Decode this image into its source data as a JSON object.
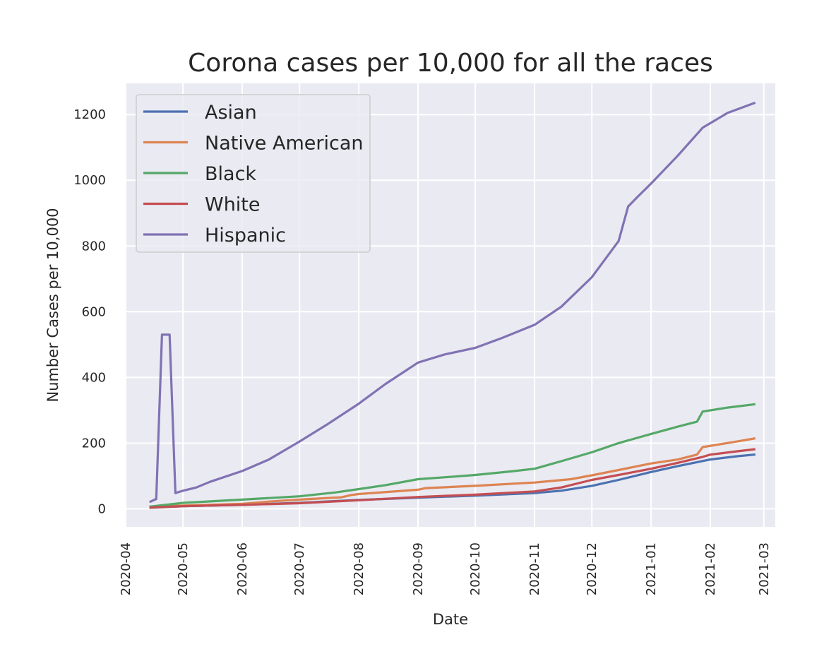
{
  "chart_data": {
    "type": "line",
    "title": "Corona cases per 10,000 for all the races",
    "xlabel": "Date",
    "ylabel": "Number Cases per 10,000",
    "x_axis_type": "date",
    "xlim": [
      "2020-04-01",
      "2021-03-07"
    ],
    "ylim": [
      -55,
      1295
    ],
    "x_ticks": [
      "2020-04",
      "2020-05",
      "2020-06",
      "2020-07",
      "2020-08",
      "2020-09",
      "2020-10",
      "2020-11",
      "2020-12",
      "2021-01",
      "2021-02",
      "2021-03"
    ],
    "y_ticks": [
      0,
      200,
      400,
      600,
      800,
      1000,
      1200
    ],
    "grid": true,
    "legend_position": "top-left",
    "series": [
      {
        "name": "Asian",
        "color": "#4c72b0",
        "points": [
          [
            "2020-04-14",
            3
          ],
          [
            "2020-05-01",
            8
          ],
          [
            "2020-06-01",
            12
          ],
          [
            "2020-07-01",
            18
          ],
          [
            "2020-08-01",
            27
          ],
          [
            "2020-09-01",
            34
          ],
          [
            "2020-10-01",
            40
          ],
          [
            "2020-11-01",
            48
          ],
          [
            "2020-11-15",
            55
          ],
          [
            "2020-12-01",
            70
          ],
          [
            "2020-12-15",
            88
          ],
          [
            "2021-01-01",
            112
          ],
          [
            "2021-01-15",
            130
          ],
          [
            "2021-02-01",
            150
          ],
          [
            "2021-02-15",
            160
          ],
          [
            "2021-02-24",
            165
          ]
        ]
      },
      {
        "name": "Native American",
        "color": "#dd8452",
        "points": [
          [
            "2020-04-14",
            5
          ],
          [
            "2020-05-01",
            10
          ],
          [
            "2020-06-01",
            15
          ],
          [
            "2020-06-15",
            22
          ],
          [
            "2020-07-01",
            28
          ],
          [
            "2020-07-23",
            35
          ],
          [
            "2020-07-28",
            42
          ],
          [
            "2020-08-01",
            45
          ],
          [
            "2020-09-01",
            58
          ],
          [
            "2020-09-05",
            63
          ],
          [
            "2020-10-01",
            70
          ],
          [
            "2020-11-01",
            80
          ],
          [
            "2020-11-20",
            90
          ],
          [
            "2020-12-01",
            102
          ],
          [
            "2020-12-15",
            118
          ],
          [
            "2021-01-01",
            138
          ],
          [
            "2021-01-15",
            150
          ],
          [
            "2021-01-25",
            165
          ],
          [
            "2021-01-28",
            188
          ],
          [
            "2021-02-15",
            205
          ],
          [
            "2021-02-24",
            214
          ]
        ]
      },
      {
        "name": "Black",
        "color": "#55a868",
        "points": [
          [
            "2020-04-14",
            7
          ],
          [
            "2020-05-01",
            18
          ],
          [
            "2020-06-01",
            28
          ],
          [
            "2020-07-01",
            38
          ],
          [
            "2020-07-20",
            50
          ],
          [
            "2020-08-01",
            60
          ],
          [
            "2020-08-15",
            72
          ],
          [
            "2020-09-01",
            90
          ],
          [
            "2020-09-20",
            98
          ],
          [
            "2020-10-01",
            103
          ],
          [
            "2020-10-20",
            114
          ],
          [
            "2020-11-01",
            122
          ],
          [
            "2020-11-15",
            145
          ],
          [
            "2020-12-01",
            172
          ],
          [
            "2020-12-15",
            200
          ],
          [
            "2021-01-01",
            228
          ],
          [
            "2021-01-15",
            250
          ],
          [
            "2021-01-25",
            265
          ],
          [
            "2021-01-28",
            296
          ],
          [
            "2021-02-10",
            308
          ],
          [
            "2021-02-24",
            318
          ]
        ]
      },
      {
        "name": "White",
        "color": "#c44e52",
        "points": [
          [
            "2020-04-14",
            4
          ],
          [
            "2020-05-01",
            8
          ],
          [
            "2020-06-01",
            12
          ],
          [
            "2020-07-01",
            17
          ],
          [
            "2020-08-01",
            26
          ],
          [
            "2020-09-01",
            36
          ],
          [
            "2020-10-01",
            43
          ],
          [
            "2020-11-01",
            53
          ],
          [
            "2020-11-15",
            65
          ],
          [
            "2020-12-01",
            88
          ],
          [
            "2020-12-15",
            103
          ],
          [
            "2021-01-01",
            122
          ],
          [
            "2021-01-15",
            140
          ],
          [
            "2021-01-28",
            158
          ],
          [
            "2021-02-01",
            165
          ],
          [
            "2021-02-15",
            175
          ],
          [
            "2021-02-24",
            181
          ]
        ]
      },
      {
        "name": "Hispanic",
        "color": "#8172b3",
        "points": [
          [
            "2020-04-14",
            22
          ],
          [
            "2020-04-17",
            30
          ],
          [
            "2020-04-20",
            530
          ],
          [
            "2020-04-24",
            530
          ],
          [
            "2020-04-27",
            48
          ],
          [
            "2020-05-01",
            55
          ],
          [
            "2020-05-08",
            65
          ],
          [
            "2020-05-15",
            82
          ],
          [
            "2020-06-01",
            115
          ],
          [
            "2020-06-15",
            150
          ],
          [
            "2020-07-01",
            205
          ],
          [
            "2020-07-15",
            255
          ],
          [
            "2020-08-01",
            320
          ],
          [
            "2020-08-15",
            380
          ],
          [
            "2020-09-01",
            445
          ],
          [
            "2020-09-15",
            470
          ],
          [
            "2020-10-01",
            490
          ],
          [
            "2020-10-15",
            520
          ],
          [
            "2020-11-01",
            560
          ],
          [
            "2020-11-15",
            615
          ],
          [
            "2020-12-01",
            705
          ],
          [
            "2020-12-15",
            815
          ],
          [
            "2020-12-20",
            920
          ],
          [
            "2020-12-25",
            950
          ],
          [
            "2021-01-01",
            990
          ],
          [
            "2021-01-15",
            1075
          ],
          [
            "2021-01-28",
            1160
          ],
          [
            "2021-02-10",
            1205
          ],
          [
            "2021-02-24",
            1235
          ]
        ]
      }
    ]
  }
}
